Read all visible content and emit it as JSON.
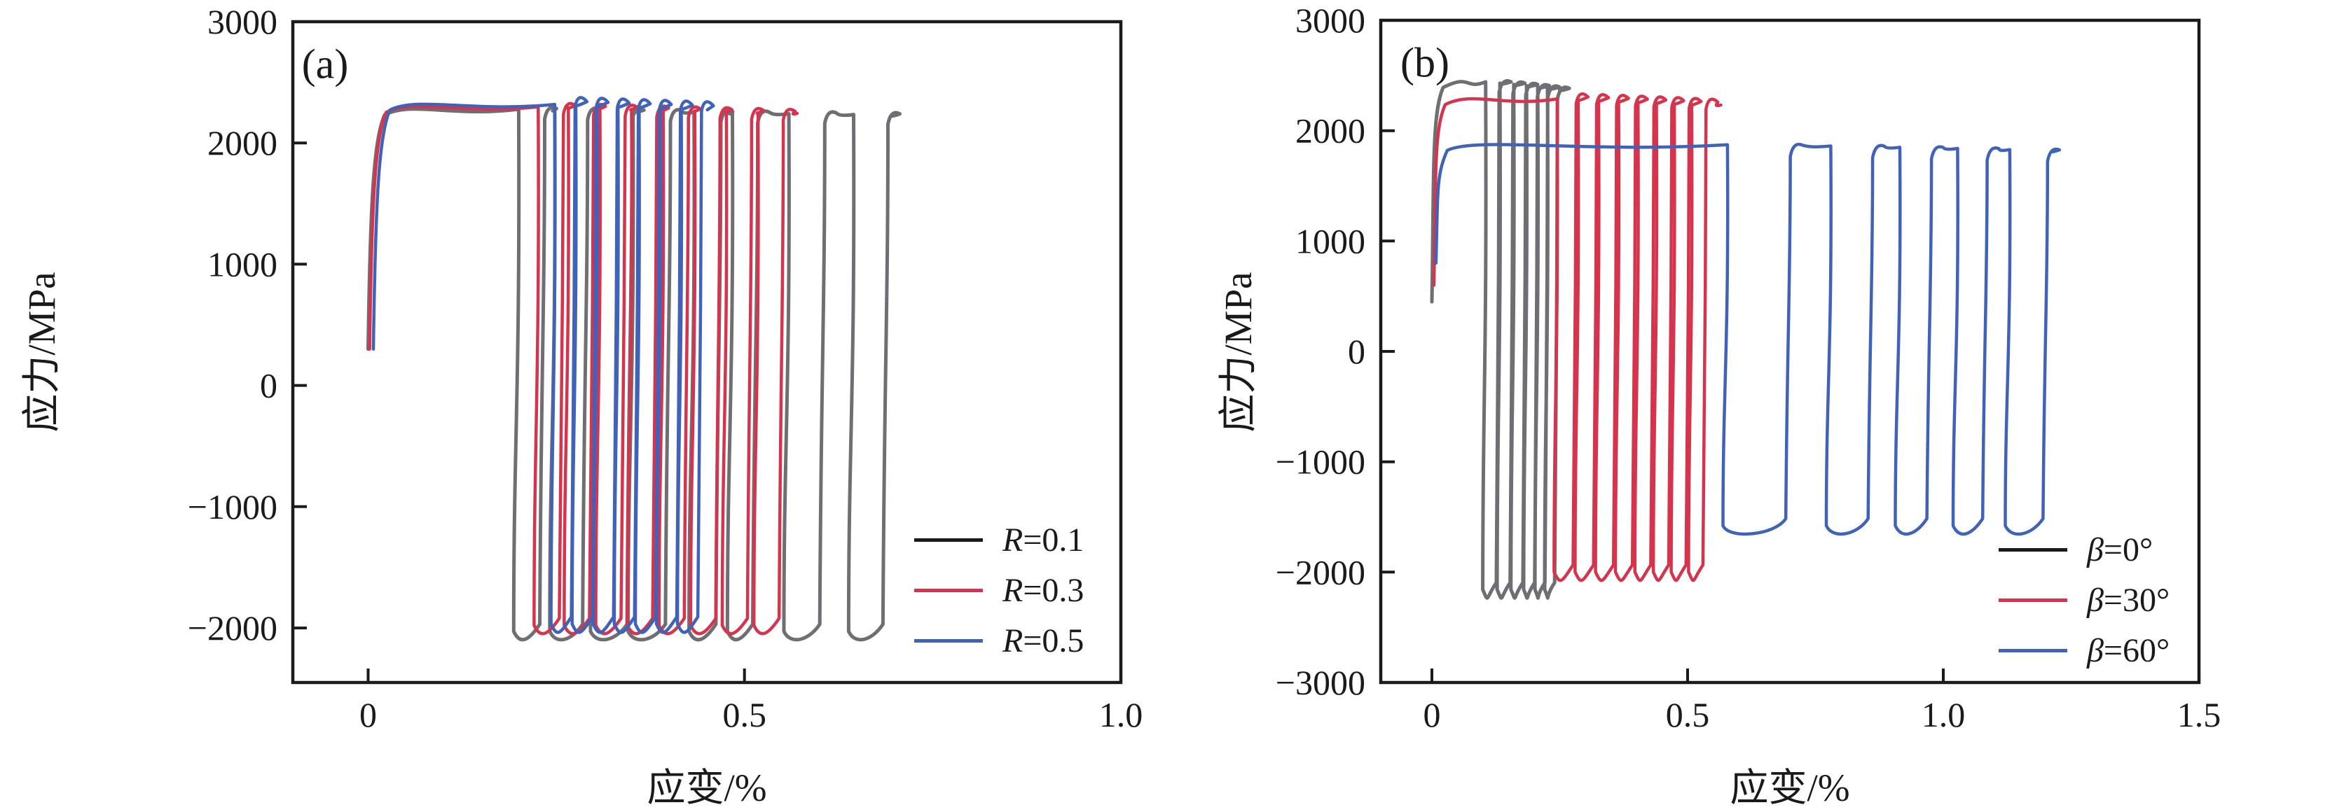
{
  "chart_data": [
    {
      "panel_label": "(a)",
      "type": "line",
      "xlabel": "应变/%",
      "ylabel": "应力/MPa",
      "xlim": [
        -0.1,
        1.0
      ],
      "ylim": [
        -2450,
        3000
      ],
      "grid": false,
      "legend_position": "lower right inside",
      "xticks": [
        {
          "v": 0,
          "label": "0"
        },
        {
          "v": 0.5,
          "label": "0.5"
        },
        {
          "v": 1.0,
          "label": "1.0"
        }
      ],
      "yticks": [
        {
          "v": 3000,
          "label": "3000"
        },
        {
          "v": 2000,
          "label": "2000"
        },
        {
          "v": 1000,
          "label": "1000"
        },
        {
          "v": 0,
          "label": "0"
        },
        {
          "v": -1000,
          "label": "−1000"
        },
        {
          "v": -2000,
          "label": "−2000"
        }
      ],
      "legend": [
        {
          "symbol": "R",
          "rest": "=0.1",
          "color": "#1a1a1a"
        },
        {
          "symbol": "R",
          "rest": "=0.3",
          "color": "#d6344c"
        },
        {
          "symbol": "R",
          "rest": "=0.5",
          "color": "#4062b8"
        }
      ],
      "series": [
        {
          "name": "R=0.1",
          "color": "#6f6f73",
          "width": 5,
          "start_stress": 300,
          "rise_x": 0.0,
          "top_start": 2290,
          "top_end": 2240,
          "overshoot": 40,
          "bottom": -2120,
          "lean": 0.012,
          "end_x": 0.695,
          "cycles": [
            {
              "d": 0.2,
              "a": 0.228
            },
            {
              "d": 0.248,
              "a": 0.285
            },
            {
              "d": 0.302,
              "a": 0.344
            },
            {
              "d": 0.352,
              "a": 0.395
            },
            {
              "d": 0.433,
              "a": 0.462
            },
            {
              "d": 0.484,
              "a": 0.511
            },
            {
              "d": 0.559,
              "a": 0.6
            },
            {
              "d": 0.645,
              "a": 0.684
            }
          ]
        },
        {
          "name": "R=0.3",
          "color": "#d6344c",
          "width": 4.5,
          "start_stress": 300,
          "rise_x": 0.002,
          "top_start": 2310,
          "top_end": 2255,
          "overshoot": 60,
          "bottom": -2070,
          "lean": 0.01,
          "end_x": 0.57,
          "cycles": [
            {
              "d": 0.226,
              "a": 0.254
            },
            {
              "d": 0.266,
              "a": 0.294
            },
            {
              "d": 0.308,
              "a": 0.336
            },
            {
              "d": 0.35,
              "a": 0.378
            },
            {
              "d": 0.392,
              "a": 0.42
            },
            {
              "d": 0.434,
              "a": 0.462
            },
            {
              "d": 0.476,
              "a": 0.504
            },
            {
              "d": 0.518,
              "a": 0.546
            }
          ]
        },
        {
          "name": "R=0.5",
          "color": "#4062b8",
          "width": 4.5,
          "start_stress": 300,
          "rise_x": 0.007,
          "top_start": 2330,
          "top_end": 2290,
          "overshoot": 100,
          "bottom": -2060,
          "lean": 0.009,
          "end_x": 0.452,
          "cycles": [
            {
              "d": 0.248,
              "a": 0.27
            },
            {
              "d": 0.276,
              "a": 0.298
            },
            {
              "d": 0.304,
              "a": 0.326
            },
            {
              "d": 0.332,
              "a": 0.354
            },
            {
              "d": 0.36,
              "a": 0.382
            },
            {
              "d": 0.388,
              "a": 0.41
            },
            {
              "d": 0.416,
              "a": 0.438
            }
          ]
        }
      ]
    },
    {
      "panel_label": "(b)",
      "type": "line",
      "xlabel": "应变/%",
      "ylabel": "应力/MPa",
      "xlim": [
        -0.1,
        1.5
      ],
      "ylim": [
        -3000,
        3000
      ],
      "grid": false,
      "legend_position": "lower right inside",
      "xticks": [
        {
          "v": 0,
          "label": "0"
        },
        {
          "v": 0.5,
          "label": "0.5"
        },
        {
          "v": 1.0,
          "label": "1.0"
        },
        {
          "v": 1.5,
          "label": "1.5"
        }
      ],
      "yticks": [
        {
          "v": 3000,
          "label": "3000"
        },
        {
          "v": 2000,
          "label": "2000"
        },
        {
          "v": 1000,
          "label": "1000"
        },
        {
          "v": 0,
          "label": "0"
        },
        {
          "v": -1000,
          "label": "−1000"
        },
        {
          "v": -2000,
          "label": "−2000"
        },
        {
          "v": -3000,
          "label": "−3000"
        }
      ],
      "legend": [
        {
          "symbol": "β",
          "rest": "=0°",
          "color": "#1a1a1a"
        },
        {
          "symbol": "β",
          "rest": "=30°",
          "color": "#d6344c"
        },
        {
          "symbol": "β",
          "rest": "=60°",
          "color": "#4062b8"
        }
      ],
      "series": [
        {
          "name": "β=0°",
          "color": "#6f6f73",
          "width": 5,
          "start_stress": 450,
          "rise_x": 0.0,
          "top_start": 2455,
          "top_end": 2385,
          "overshoot": 40,
          "bottom": -2260,
          "lean": 0.01,
          "end_x": 0.25,
          "cycles": [
            {
              "d": 0.105,
              "a": 0.126
            },
            {
              "d": 0.133,
              "a": 0.153
            },
            {
              "d": 0.16,
              "a": 0.178
            },
            {
              "d": 0.185,
              "a": 0.201
            },
            {
              "d": 0.207,
              "a": 0.221
            },
            {
              "d": 0.226,
              "a": 0.24
            }
          ]
        },
        {
          "name": "β=30°",
          "color": "#d6344c",
          "width": 4.5,
          "start_stress": 600,
          "rise_x": 0.004,
          "top_start": 2300,
          "top_end": 2245,
          "overshoot": 90,
          "bottom": -2100,
          "lean": 0.011,
          "end_x": 0.565,
          "cycles": [
            {
              "d": 0.245,
              "a": 0.276
            },
            {
              "d": 0.286,
              "a": 0.316
            },
            {
              "d": 0.326,
              "a": 0.355
            },
            {
              "d": 0.365,
              "a": 0.392
            },
            {
              "d": 0.403,
              "a": 0.428
            },
            {
              "d": 0.439,
              "a": 0.463
            },
            {
              "d": 0.474,
              "a": 0.497
            },
            {
              "d": 0.508,
              "a": 0.53
            }
          ]
        },
        {
          "name": "β=60°",
          "color": "#4062b8",
          "width": 4.5,
          "start_stress": 800,
          "rise_x": 0.008,
          "top_start": 1885,
          "top_end": 1830,
          "overshoot": 30,
          "bottom": -1680,
          "lean": 0.016,
          "end_x": 1.215,
          "cycles": [
            {
              "d": 0.578,
              "a": 0.692
            },
            {
              "d": 0.78,
              "a": 0.853
            },
            {
              "d": 0.915,
              "a": 0.968
            },
            {
              "d": 1.028,
              "a": 1.077
            },
            {
              "d": 1.13,
              "a": 1.195
            }
          ]
        }
      ]
    }
  ]
}
